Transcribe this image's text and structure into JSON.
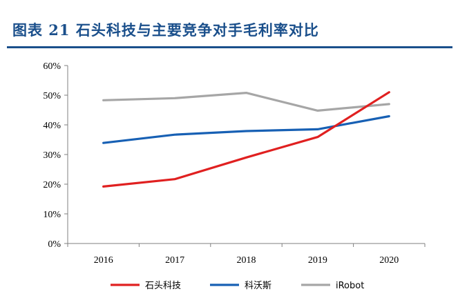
{
  "figure": {
    "title": "图表 21   石头科技与主要竞争对手毛利率对比"
  },
  "chart_data": {
    "type": "line",
    "title": "",
    "xlabel": "",
    "ylabel": "",
    "categories": [
      "2016",
      "2017",
      "2018",
      "2019",
      "2020"
    ],
    "ylim": [
      0,
      60
    ],
    "yticks": [
      0,
      10,
      20,
      30,
      40,
      50,
      60
    ],
    "ytick_labels": [
      "0%",
      "10%",
      "20%",
      "30%",
      "40%",
      "50%",
      "60%"
    ],
    "grid": false,
    "legend_position": "bottom",
    "series": [
      {
        "name": "石头科技",
        "color": "#e02020",
        "values": [
          19.2,
          21.7,
          29.0,
          35.9,
          51.0
        ]
      },
      {
        "name": "科沃斯",
        "color": "#1760b4",
        "values": [
          33.9,
          36.7,
          37.9,
          38.5,
          42.9
        ]
      },
      {
        "name": "iRobot",
        "color": "#a6a6a6",
        "values": [
          48.3,
          49.0,
          50.8,
          44.8,
          47.0
        ]
      }
    ]
  }
}
